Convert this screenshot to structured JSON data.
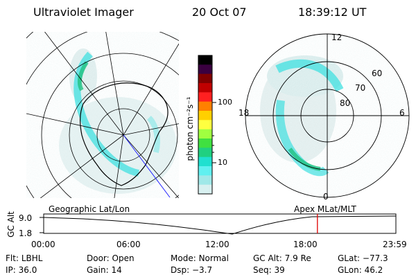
{
  "header": {
    "instrument": "Ultraviolet Imager",
    "date": "20 Oct 07",
    "time": "18:39:12 UT"
  },
  "left_panel": {
    "label": "Geographic Lat/Lon"
  },
  "right_panel": {
    "label": "Apex  MLat/MLT",
    "mlt_labels": [
      "12",
      "18",
      "6",
      "0"
    ],
    "lat_labels": [
      "60",
      "70",
      "80"
    ]
  },
  "colorbar": {
    "unit_label": "photon cm⁻²s⁻¹",
    "ticks": [
      "100",
      "10"
    ],
    "colors": [
      "#000000",
      "#3a0040",
      "#800000",
      "#c00000",
      "#ff2020",
      "#ff8000",
      "#ffd000",
      "#ffff40",
      "#a0ff40",
      "#40e040",
      "#20d080",
      "#20e0d0",
      "#60f0f0",
      "#a0e8e8",
      "#d8f0f0"
    ]
  },
  "timeline": {
    "axis_label": "GC Alt",
    "y_ticks": [
      "9.0",
      "1.8"
    ],
    "x_ticks": [
      "00:00",
      "06:00",
      "12:00",
      "18:00",
      "23:59"
    ],
    "current_marker_hour": 18.65,
    "marker_color": "#e00000"
  },
  "status": {
    "row1": [
      {
        "key": "Flt:",
        "value": "LBHL"
      },
      {
        "key": "Door:",
        "value": "Open"
      },
      {
        "key": "Mode:",
        "value": "Normal"
      },
      {
        "key": "GC Alt:",
        "value": "7.9 Re"
      },
      {
        "key": "GLat:",
        "value": "−77.3"
      }
    ],
    "row2": [
      {
        "key": "IP:",
        "value": "36.0"
      },
      {
        "key": "Gain:",
        "value": "14"
      },
      {
        "key": "Dsp:",
        "value": "−3.7"
      },
      {
        "key": "Seq:",
        "value": "39"
      },
      {
        "key": "GLon:",
        "value": "46.2"
      }
    ]
  }
}
